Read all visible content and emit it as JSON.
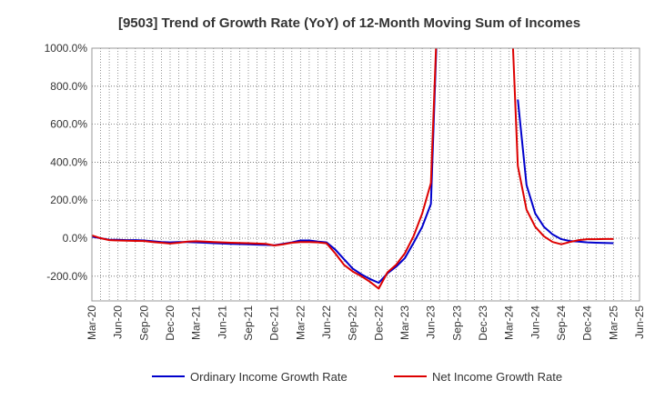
{
  "chart_data": {
    "type": "line",
    "title": "[9503]  Trend of Growth Rate (YoY) of 12-Month Moving Sum of Incomes",
    "xlabel": "",
    "ylabel": "",
    "ylim": [
      -330,
      1000
    ],
    "y_ticks": [
      1000,
      800,
      600,
      400,
      200,
      0,
      -200
    ],
    "y_tick_labels": [
      "1000.0%",
      "800.0%",
      "600.0%",
      "400.0%",
      "200.0%",
      "0.0%",
      "-200.0%"
    ],
    "x_tick_labels": [
      "Mar-20",
      "Jun-20",
      "Sep-20",
      "Dec-20",
      "Mar-21",
      "Jun-21",
      "Sep-21",
      "Dec-21",
      "Mar-22",
      "Jun-22",
      "Sep-22",
      "Dec-22",
      "Mar-23",
      "Jun-23",
      "Sep-23",
      "Dec-23",
      "Mar-24",
      "Jun-24",
      "Sep-24",
      "Dec-24",
      "Mar-25",
      "Jun-25"
    ],
    "x": [
      "Mar-20",
      "Apr-20",
      "May-20",
      "Jun-20",
      "Jul-20",
      "Aug-20",
      "Sep-20",
      "Oct-20",
      "Nov-20",
      "Dec-20",
      "Jan-21",
      "Feb-21",
      "Mar-21",
      "Apr-21",
      "May-21",
      "Jun-21",
      "Jul-21",
      "Aug-21",
      "Sep-21",
      "Oct-21",
      "Nov-21",
      "Dec-21",
      "Jan-22",
      "Feb-22",
      "Mar-22",
      "Apr-22",
      "May-22",
      "Jun-22",
      "Jul-22",
      "Aug-22",
      "Sep-22",
      "Oct-22",
      "Nov-22",
      "Dec-22",
      "Jan-23",
      "Feb-23",
      "Mar-23",
      "Apr-23",
      "May-23",
      "Jun-23",
      "Jul-23",
      "Aug-23",
      "Sep-23",
      "Oct-23",
      "Nov-23",
      "Dec-23",
      "Jan-24",
      "Feb-24",
      "Mar-24",
      "Apr-24",
      "May-24",
      "Jun-24",
      "Jul-24",
      "Aug-24",
      "Sep-24",
      "Oct-24",
      "Nov-24",
      "Dec-24",
      "Jan-25",
      "Feb-25",
      "Mar-25",
      "Apr-25",
      "May-25",
      "Jun-25"
    ],
    "grid": true,
    "legend_position": "bottom",
    "series": [
      {
        "name": "Ordinary Income Growth Rate",
        "color": "#0000cc",
        "values": [
          8,
          0,
          -8,
          -8,
          -10,
          -10,
          -12,
          -16,
          -20,
          -22,
          -20,
          -20,
          -22,
          -24,
          -26,
          -28,
          -30,
          -31,
          -32,
          -34,
          -35,
          -37,
          -30,
          -22,
          -12,
          -12,
          -18,
          -22,
          -60,
          -110,
          -160,
          -190,
          -215,
          -235,
          -185,
          -150,
          -105,
          -25,
          60,
          180,
          1500,
          null,
          null,
          null,
          null,
          null,
          null,
          null,
          null,
          730,
          280,
          130,
          60,
          20,
          -5,
          -15,
          -18,
          -22,
          -24,
          -25,
          -26,
          null,
          null,
          null
        ]
      },
      {
        "name": "Net Income Growth Rate",
        "color": "#dd0000",
        "values": [
          15,
          0,
          -10,
          -12,
          -13,
          -14,
          -15,
          -20,
          -24,
          -28,
          -24,
          -18,
          -16,
          -18,
          -20,
          -22,
          -24,
          -25,
          -26,
          -28,
          -30,
          -38,
          -32,
          -24,
          -20,
          -20,
          -22,
          -27,
          -80,
          -140,
          -175,
          -200,
          -230,
          -265,
          -180,
          -140,
          -80,
          10,
          130,
          290,
          1500,
          null,
          null,
          null,
          null,
          null,
          null,
          null,
          1500,
          380,
          150,
          60,
          10,
          -20,
          -32,
          -20,
          -10,
          -5,
          -5,
          -4,
          -4,
          null,
          null,
          null
        ]
      }
    ]
  }
}
